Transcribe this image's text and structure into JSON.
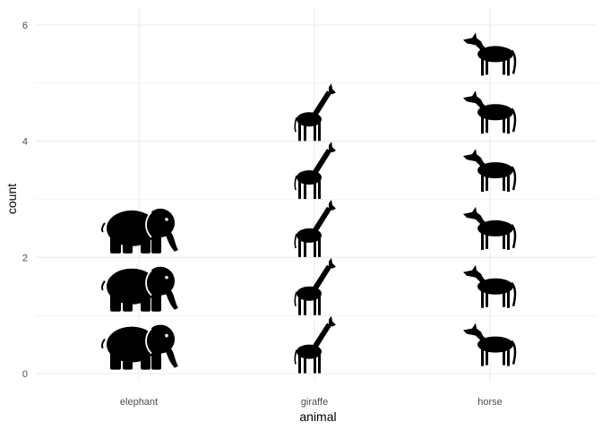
{
  "chart_data": {
    "type": "pictogram",
    "categories": [
      "elephant",
      "giraffe",
      "horse"
    ],
    "values": [
      3,
      5,
      6
    ],
    "icons": [
      "elephant-icon",
      "giraffe-icon",
      "horse-icon"
    ],
    "xlabel": "animal",
    "ylabel": "count",
    "ylim": [
      0,
      6
    ],
    "yticks": [
      0,
      2,
      4,
      6
    ],
    "grid": true,
    "colors": {
      "icon": "#000000",
      "grid": "#ebebeb",
      "background": "#ffffff"
    }
  }
}
